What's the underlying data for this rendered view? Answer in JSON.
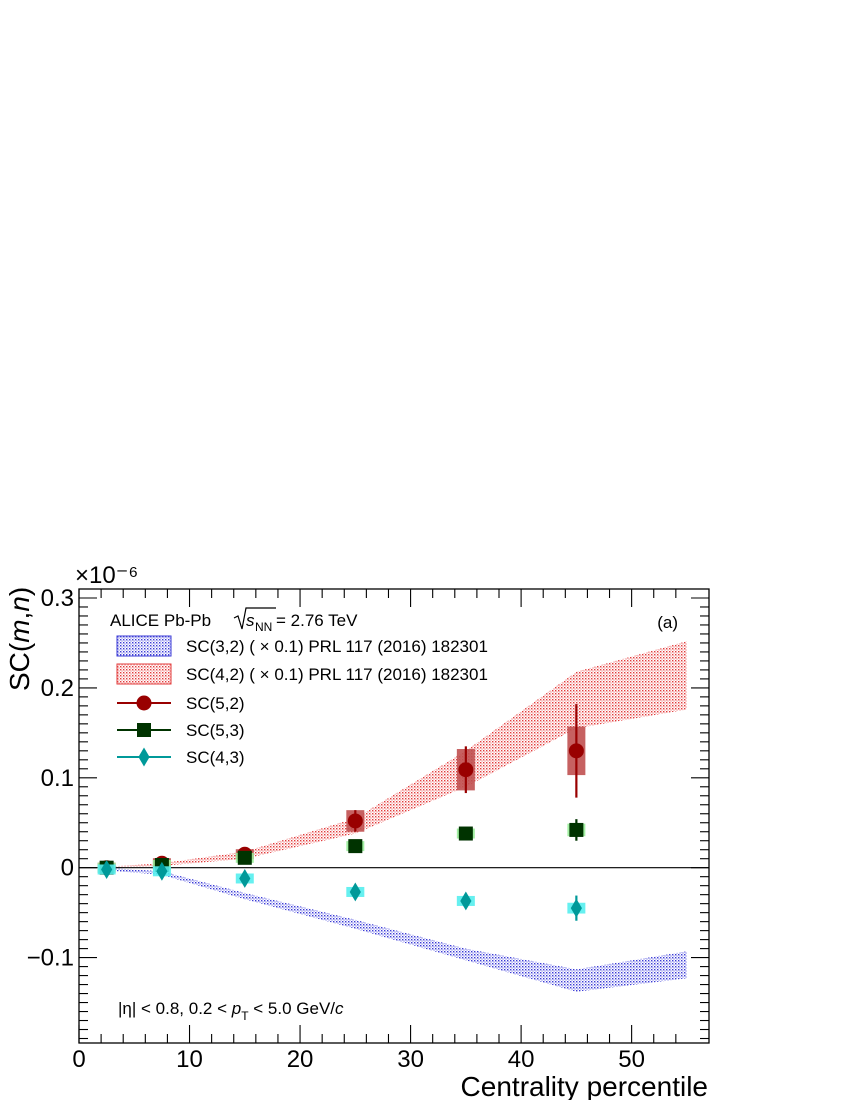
{
  "chart_data": {
    "type": "scatter",
    "xlabel": "Centrality percentile",
    "ylabel": "SC(m,n)",
    "ylabel_parts": {
      "prefix": "SC(",
      "m": "m",
      "comma": ",",
      "n": "n",
      "suffix": ")"
    },
    "exponent_label": "×10⁻⁶",
    "xlim": [
      0,
      57
    ],
    "ylim": [
      -0.195,
      0.31
    ],
    "x_ticks": [
      0,
      10,
      20,
      30,
      40,
      50
    ],
    "x_tick_labels": [
      "0",
      "10",
      "20",
      "30",
      "40",
      "50"
    ],
    "y_ticks": [
      -0.1,
      0,
      0.1,
      0.2,
      0.3
    ],
    "y_tick_labels": [
      "−0.1",
      "0",
      "0.1",
      "0.2",
      "0.3"
    ],
    "panel_label": "(a)",
    "header": {
      "prefix": "ALICE Pb-Pb ",
      "sqrt_s": "s",
      "nn_subscript": "NN",
      "suffix": " = 2.76 TeV"
    },
    "kinematics": {
      "eta_part": "|η| < 0.8, 0.2 < ",
      "pt_p": "p",
      "pt_sub": "T",
      "pt_mid": " < 5.0 GeV/",
      "pt_c": "c"
    },
    "legend": [
      {
        "label": "SC(3,2) ( × 0.1) PRL 117 (2016) 182301",
        "kind": "band",
        "color": "#3b3bd6"
      },
      {
        "label": "SC(4,2) ( × 0.1) PRL 117 (2016) 182301",
        "kind": "band",
        "color": "#e23b3b"
      },
      {
        "label": "SC(5,2)",
        "kind": "circle",
        "color": "#990000"
      },
      {
        "label": "SC(5,3)",
        "kind": "square",
        "color": "#003300"
      },
      {
        "label": "SC(4,3)",
        "kind": "diamond",
        "color": "#009999"
      }
    ],
    "bands": [
      {
        "name": "SC(3,2) ( × 0.1) PRL 117 (2016) 182301",
        "color": "#3b3bd6",
        "x": [
          2.5,
          7.5,
          15,
          25,
          35,
          45,
          55
        ],
        "low": [
          -0.003,
          -0.008,
          -0.035,
          -0.068,
          -0.103,
          -0.138,
          -0.123
        ],
        "high": [
          0.0,
          -0.004,
          -0.028,
          -0.058,
          -0.09,
          -0.113,
          -0.093
        ]
      },
      {
        "name": "SC(4,2) ( × 0.1) PRL 117 (2016) 182301",
        "color": "#e23b3b",
        "x": [
          2.5,
          7.5,
          15,
          25,
          35,
          45,
          55
        ],
        "low": [
          0.0,
          0.002,
          0.01,
          0.038,
          0.09,
          0.155,
          0.176
        ],
        "high": [
          0.001,
          0.005,
          0.018,
          0.055,
          0.13,
          0.218,
          0.252
        ]
      }
    ],
    "series": [
      {
        "name": "SC(5,2)",
        "marker": "circle",
        "color": "#990000",
        "syst_color": "#c05050",
        "x": [
          2.5,
          7.5,
          15,
          25,
          35,
          45
        ],
        "values": [
          0.0,
          0.005,
          0.015,
          0.052,
          0.109,
          0.13
        ],
        "stat_err": [
          0.002,
          0.003,
          0.004,
          0.012,
          0.026,
          0.052
        ],
        "sys_err": [
          0.002,
          0.002,
          0.003,
          0.012,
          0.023,
          0.027
        ]
      },
      {
        "name": "SC(5,3)",
        "marker": "square",
        "color": "#003300",
        "syst_color": "#99ee99",
        "x": [
          2.5,
          7.5,
          15,
          25,
          35,
          45
        ],
        "values": [
          0.0,
          0.003,
          0.011,
          0.024,
          0.038,
          0.042
        ],
        "stat_err": [
          0.002,
          0.002,
          0.003,
          0.004,
          0.005,
          0.012
        ],
        "sys_err": [
          0.002,
          0.002,
          0.003,
          0.004,
          0.005,
          0.007
        ]
      },
      {
        "name": "SC(4,3)",
        "marker": "diamond",
        "color": "#009999",
        "syst_color": "#55eeee",
        "x": [
          2.5,
          7.5,
          15,
          25,
          35,
          45
        ],
        "values": [
          -0.002,
          -0.004,
          -0.012,
          -0.027,
          -0.037,
          -0.045
        ],
        "stat_err": [
          0.002,
          0.003,
          0.004,
          0.005,
          0.006,
          0.014
        ],
        "sys_err": [
          0.002,
          0.002,
          0.003,
          0.004,
          0.005,
          0.006
        ]
      }
    ]
  }
}
